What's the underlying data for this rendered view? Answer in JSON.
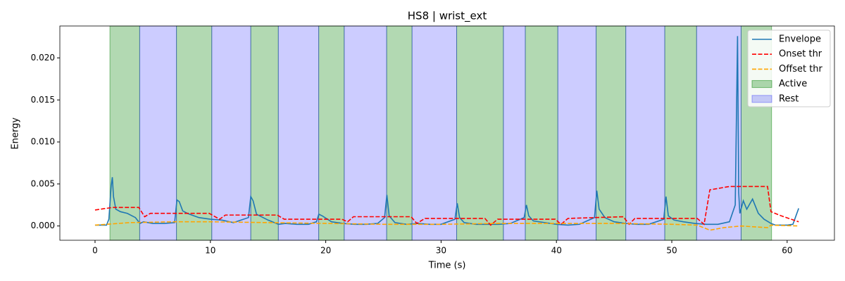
{
  "chart_data": {
    "type": "line",
    "title": "HS8 | wrist_ext",
    "xlabel": "Time (s)",
    "ylabel": "Energy",
    "xlim": [
      -3.05,
      64.1
    ],
    "ylim": [
      -0.0017,
      0.0238
    ],
    "xticks": [
      0,
      10,
      20,
      30,
      40,
      50,
      60
    ],
    "yticks": [
      {
        "value": 0,
        "label": "0.000"
      },
      {
        "value": 0.005,
        "label": "0.005"
      },
      {
        "value": 0.01,
        "label": "0.010"
      },
      {
        "value": 0.015,
        "label": "0.015"
      },
      {
        "value": 0.02,
        "label": "0.020"
      }
    ],
    "legend": "upper right",
    "series": [
      {
        "name": "Envelope",
        "color": "#1f77b4",
        "linestyle": "solid",
        "x": [
          0,
          0.5,
          1.0,
          1.2,
          1.4,
          1.5,
          1.6,
          1.8,
          2.2,
          2.8,
          3.5,
          3.9,
          4.2,
          5,
          6,
          6.9,
          7.1,
          7.3,
          7.6,
          8,
          9,
          10,
          11,
          12,
          13.3,
          13.5,
          13.7,
          14,
          15,
          15.9,
          16.5,
          17.5,
          18.5,
          19.2,
          19.4,
          19.7,
          20.5,
          21.5,
          22.5,
          23.5,
          24.5,
          25.1,
          25.3,
          25.5,
          26,
          27,
          28,
          29,
          30,
          31.2,
          31.4,
          31.6,
          32,
          33,
          34,
          35,
          36,
          37.2,
          37.4,
          37.6,
          38,
          39,
          40,
          41,
          42,
          43.3,
          43.5,
          43.7,
          44.2,
          45,
          46,
          47,
          48,
          49.3,
          49.5,
          49.7,
          50.2,
          51,
          52,
          53,
          54,
          55,
          55.5,
          55.7,
          55.8,
          55.9,
          56.2,
          56.5,
          57,
          57.5,
          58,
          58.6,
          59,
          60,
          60.5,
          61
        ],
        "values": [
          0.0001,
          0.0001,
          0.0001,
          0.0008,
          0.0048,
          0.0058,
          0.0035,
          0.002,
          0.0017,
          0.0015,
          0.001,
          0.0003,
          0.0005,
          0.0003,
          0.0003,
          0.0004,
          0.0031,
          0.0029,
          0.0018,
          0.0015,
          0.001,
          0.0008,
          0.0007,
          0.0004,
          0.001,
          0.0035,
          0.003,
          0.0014,
          0.0007,
          0.0002,
          0.0003,
          0.0002,
          0.0002,
          0.0005,
          0.0014,
          0.0012,
          0.0005,
          0.0003,
          0.0002,
          0.0002,
          0.0003,
          0.001,
          0.0037,
          0.0012,
          0.0004,
          0.0002,
          0.0003,
          0.0002,
          0.0002,
          0.0008,
          0.0027,
          0.001,
          0.0004,
          0.0002,
          0.0002,
          0.0002,
          0.0003,
          0.001,
          0.0025,
          0.0012,
          0.0006,
          0.0004,
          0.0002,
          0.0001,
          0.0002,
          0.001,
          0.0042,
          0.002,
          0.001,
          0.0005,
          0.0003,
          0.0002,
          0.0002,
          0.0008,
          0.0035,
          0.0012,
          0.0007,
          0.0005,
          0.0003,
          0.0002,
          0.0002,
          0.0005,
          0.0025,
          0.0226,
          0.004,
          0.0015,
          0.003,
          0.002,
          0.0032,
          0.0015,
          0.0008,
          0.0003,
          0.0001,
          0.0001,
          0.0002,
          0.0021
        ]
      },
      {
        "name": "Onset thr",
        "color": "red",
        "linestyle": "dashed",
        "x": [
          0,
          1.5,
          3.8,
          4.3,
          4.8,
          9.9,
          10.8,
          11.3,
          15.8,
          16.4,
          21.4,
          21.9,
          22.4,
          27.4,
          27.9,
          28.6,
          33.8,
          34.3,
          34.9,
          39.9,
          40.4,
          41,
          45.8,
          46.3,
          46.8,
          52.2,
          52.8,
          53.3,
          55,
          58.3,
          58.6,
          59.5,
          61
        ],
        "values": [
          0.0019,
          0.0022,
          0.0022,
          0.0011,
          0.0015,
          0.0015,
          0.0008,
          0.0013,
          0.0013,
          0.0008,
          0.0008,
          0.0005,
          0.0011,
          0.0011,
          0.0003,
          0.0009,
          0.0009,
          0.0001,
          0.0008,
          0.0008,
          0.0002,
          0.0009,
          0.0011,
          0.0002,
          0.0009,
          0.0009,
          0.0002,
          0.0043,
          0.0047,
          0.0047,
          0.0017,
          0.0012,
          0.0005
        ]
      },
      {
        "name": "Offset thr",
        "color": "orange",
        "linestyle": "dashed",
        "x": [
          0,
          3,
          7,
          10,
          15,
          20,
          25,
          30,
          35,
          40,
          45,
          50,
          52.2,
          53.3,
          54.5,
          56,
          58.3,
          58.6,
          61
        ],
        "values": [
          0.0001,
          0.0004,
          0.0005,
          0.0005,
          0.0004,
          0.0003,
          0.0002,
          0.0002,
          0.0003,
          0.0003,
          0.0003,
          0.0002,
          0.0001,
          -0.0005,
          -0.0002,
          0.0,
          -0.0002,
          0.0001,
          0.0
        ]
      }
    ],
    "spans": [
      {
        "name": "Active",
        "color": "green",
        "alpha": 0.3,
        "ranges": [
          [
            1.29,
            3.87
          ],
          [
            7.06,
            10.12
          ],
          [
            13.5,
            15.89
          ],
          [
            19.39,
            21.6
          ],
          [
            25.28,
            27.48
          ],
          [
            31.35,
            35.4
          ],
          [
            37.3,
            40.12
          ],
          [
            43.44,
            46.01
          ],
          [
            49.39,
            52.15
          ],
          [
            56.01,
            58.65
          ]
        ]
      },
      {
        "name": "Rest",
        "color": "blue",
        "alpha": 0.2,
        "ranges": [
          [
            3.87,
            7.06
          ],
          [
            10.12,
            13.5
          ],
          [
            15.89,
            19.39
          ],
          [
            21.6,
            25.28
          ],
          [
            27.48,
            31.35
          ],
          [
            35.4,
            37.3
          ],
          [
            40.12,
            43.44
          ],
          [
            46.01,
            49.39
          ],
          [
            52.15,
            56.01
          ]
        ]
      }
    ]
  }
}
